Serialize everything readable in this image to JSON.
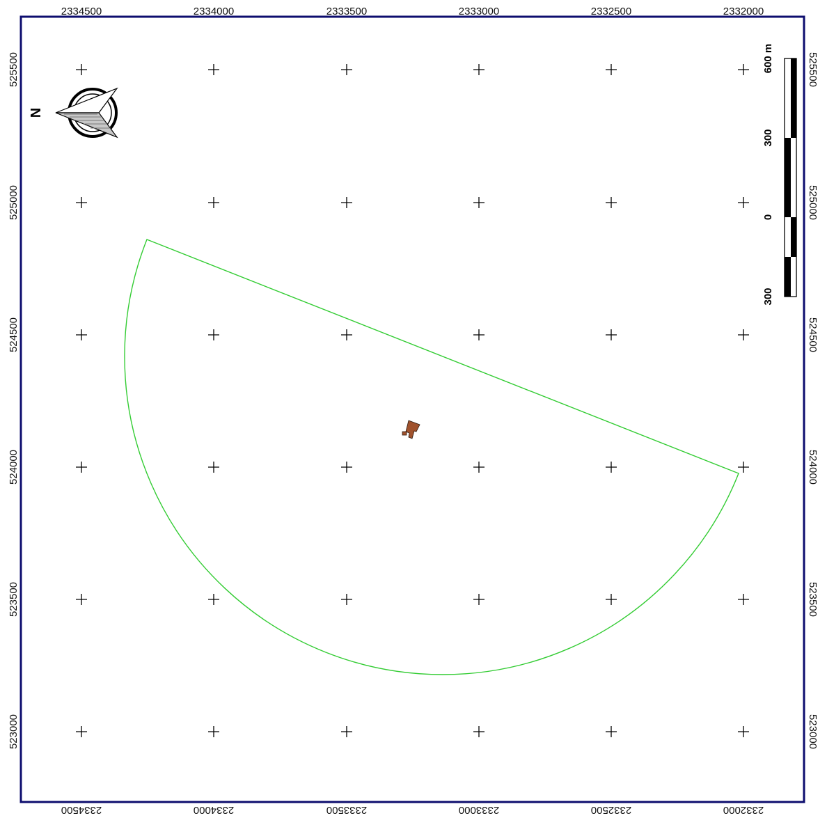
{
  "map": {
    "frame_color": "#0d0d6e",
    "grid_color": "#000000",
    "easting_labels": [
      "2334500",
      "2334000",
      "2333500",
      "2333000",
      "2332500",
      "2332000"
    ],
    "northing_labels": [
      "525500",
      "525000",
      "524500",
      "524000",
      "523500",
      "523000"
    ],
    "buffer_outline_color": "#33cc33",
    "feature_color": "#a0522d",
    "north_arrow_label": "N",
    "scale_bar": {
      "labels": [
        "300",
        "0",
        "300",
        "600 m"
      ]
    }
  }
}
